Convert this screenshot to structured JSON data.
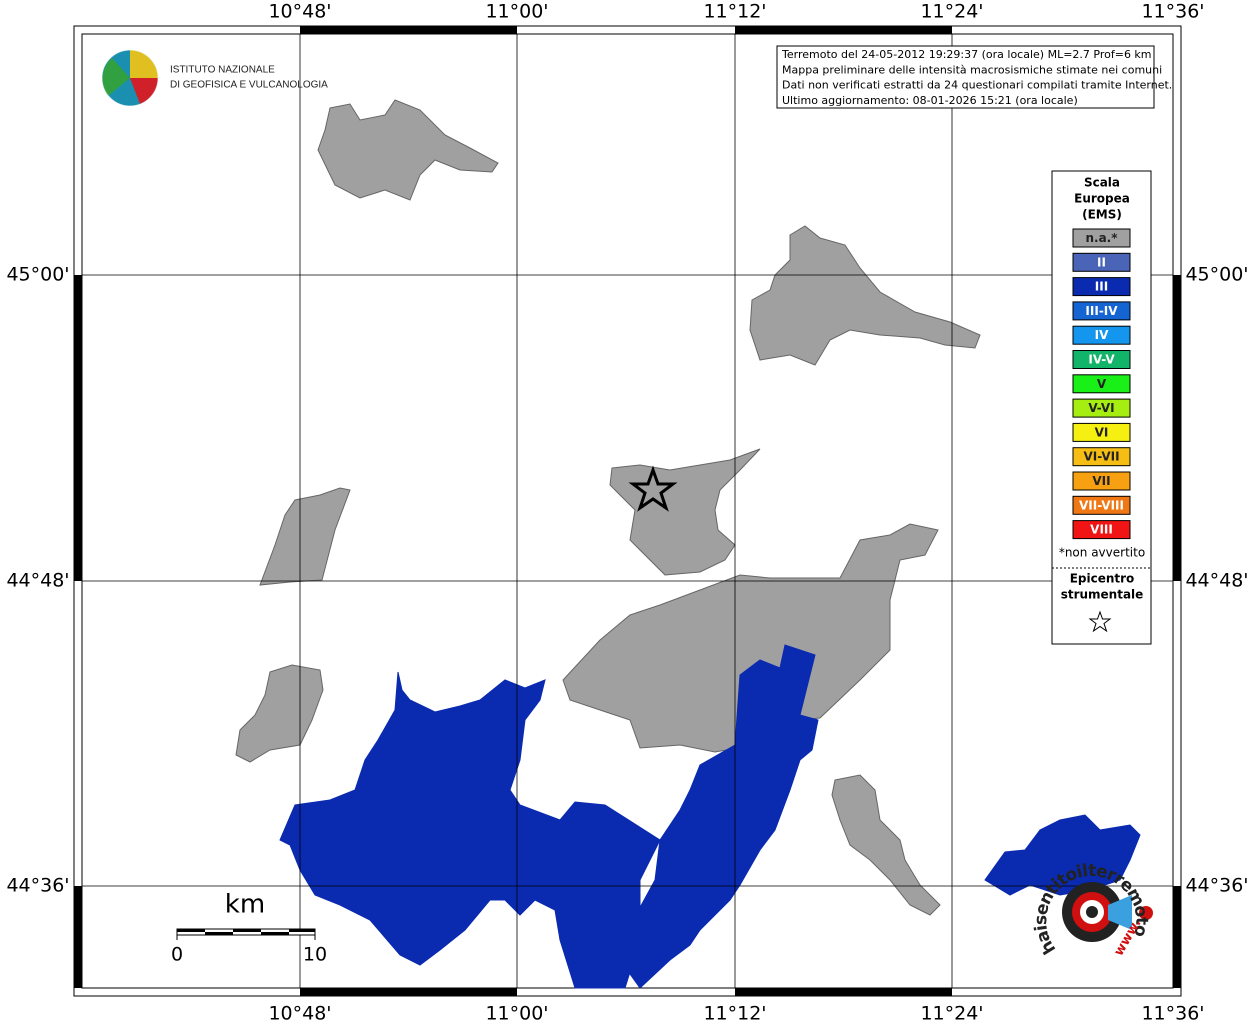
{
  "map": {
    "longitude_labels": [
      "10°48'",
      "11°00'",
      "11°12'",
      "11°24'",
      "11°36'"
    ],
    "latitude_labels": [
      "45°00'",
      "44°48'",
      "44°36'"
    ],
    "logo": {
      "line1": "ISTITUTO NAZIONALE",
      "line2": "DI GEOFISICA E VULCANOLOGIA"
    },
    "info": [
      "Terremoto del 24-05-2012 19:29:37 (ora locale) ML=2.7 Prof=6 km",
      "Mappa preliminare delle intensità macrosismiche stimate nei comuni",
      "Dati non verificati estratti da 24 questionari compilati tramite Internet.",
      "Ultimo aggiornamento: 08-01-2026 15:21 (ora locale)"
    ],
    "legend": {
      "title": [
        "Scala",
        "Europea",
        "(EMS)"
      ],
      "items": [
        {
          "label": "n.a.*",
          "color": "#a0a0a0"
        },
        {
          "label": "II",
          "color": "#4a64b8"
        },
        {
          "label": "III",
          "color": "#0a2ab0"
        },
        {
          "label": "III-IV",
          "color": "#1464d2"
        },
        {
          "label": "IV",
          "color": "#1496ee"
        },
        {
          "label": "IV-V",
          "color": "#12b46a"
        },
        {
          "label": "V",
          "color": "#18f018"
        },
        {
          "label": "V-VI",
          "color": "#a6ee12"
        },
        {
          "label": "VI",
          "color": "#f6f012"
        },
        {
          "label": "VI-VII",
          "color": "#f6be14"
        },
        {
          "label": "VII",
          "color": "#f6a012"
        },
        {
          "label": "VII-VIII",
          "color": "#f07814"
        },
        {
          "label": "VIII",
          "color": "#f01414"
        }
      ],
      "note": "*non avvertito",
      "epicentre": [
        "Epicentro",
        "strumentale"
      ]
    },
    "scale": {
      "unit": "km",
      "start": "0",
      "end": "10"
    },
    "watermark": {
      "site": "haisentitoilterremoto.it",
      "www": "www."
    }
  }
}
